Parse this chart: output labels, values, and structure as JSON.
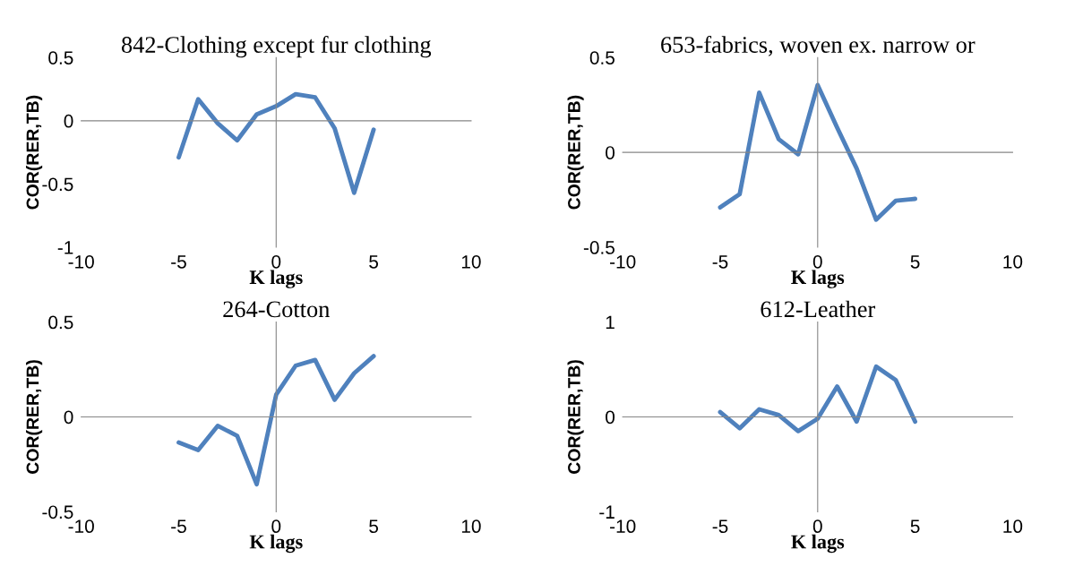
{
  "chart_data": [
    {
      "type": "line",
      "title": "842-Clothing except fur clothing",
      "xlabel": "K lags",
      "ylabel": "COR(RER,TB)",
      "x": [
        -5,
        -4,
        -3,
        -2,
        -1,
        0,
        1,
        2,
        3,
        4,
        5
      ],
      "series": [
        {
          "color": "#4f81bd",
          "values": [
            -0.29,
            0.17,
            -0.02,
            -0.155,
            0.05,
            0.115,
            0.21,
            0.185,
            -0.06,
            -0.57,
            -0.07
          ]
        }
      ],
      "xlim": [
        -10,
        10
      ],
      "xticks": [
        -10,
        -5,
        0,
        5,
        10
      ],
      "ylim": [
        -1,
        0.5
      ],
      "yticks": [
        -1,
        -0.5,
        0,
        0.5
      ],
      "legend": false,
      "marker": "none"
    },
    {
      "type": "line",
      "title": "653-fabrics, woven ex. narrow or",
      "xlabel": "K lags",
      "ylabel": "COR(RER,TB)",
      "x": [
        -5,
        -4,
        -3,
        -2,
        -1,
        0,
        1,
        2,
        3,
        4,
        5
      ],
      "series": [
        {
          "color": "#4f81bd",
          "values": [
            -0.29,
            -0.22,
            0.315,
            0.07,
            -0.01,
            0.355,
            0.13,
            -0.085,
            -0.355,
            -0.255,
            -0.245
          ]
        }
      ],
      "xlim": [
        -10,
        10
      ],
      "xticks": [
        -10,
        -5,
        0,
        5,
        10
      ],
      "ylim": [
        -0.5,
        0.5
      ],
      "yticks": [
        -0.5,
        0,
        0.5
      ],
      "legend": false,
      "marker": "none"
    },
    {
      "type": "line",
      "title": "264-Cotton",
      "xlabel": "K lags",
      "ylabel": "COR(RER,TB)",
      "x": [
        -5,
        -4,
        -3,
        -2,
        -1,
        0,
        1,
        2,
        3,
        4,
        5
      ],
      "series": [
        {
          "color": "#4f81bd",
          "values": [
            -0.135,
            -0.175,
            -0.047,
            -0.1,
            -0.355,
            0.117,
            0.27,
            0.3,
            0.09,
            0.23,
            0.32
          ]
        }
      ],
      "xlim": [
        -10,
        10
      ],
      "xticks": [
        -10,
        -5,
        0,
        5,
        10
      ],
      "ylim": [
        -0.5,
        0.5
      ],
      "yticks": [
        -0.5,
        0,
        0.5
      ],
      "legend": false,
      "marker": "none"
    },
    {
      "type": "line",
      "title": "612-Leather",
      "xlabel": "K lags",
      "ylabel": "COR(RER,TB)",
      "x": [
        -5,
        -4,
        -3,
        -2,
        -1,
        0,
        1,
        2,
        3,
        4,
        5
      ],
      "series": [
        {
          "color": "#4f81bd",
          "values": [
            0.05,
            -0.12,
            0.08,
            0.02,
            -0.15,
            -0.02,
            0.32,
            -0.05,
            0.53,
            0.39,
            -0.05
          ]
        }
      ],
      "xlim": [
        -10,
        10
      ],
      "xticks": [
        -10,
        -5,
        0,
        5,
        10
      ],
      "ylim": [
        -1,
        1
      ],
      "yticks": [
        -1,
        0,
        1
      ],
      "legend": false,
      "marker": "none"
    }
  ]
}
